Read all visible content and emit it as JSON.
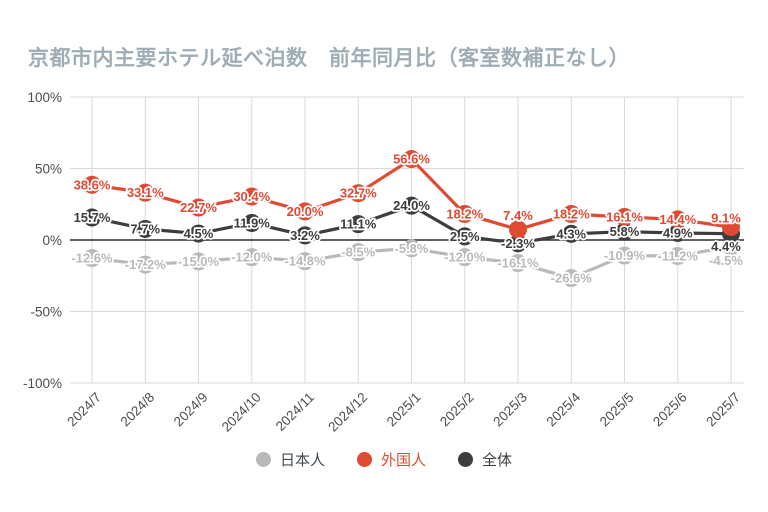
{
  "title": "京都市内主要ホテル延べ泊数　前年同月比（客室数補正なし）",
  "chart_data": {
    "type": "line",
    "categories": [
      "2024/7",
      "2024/8",
      "2024/9",
      "2024/10",
      "2024/11",
      "2024/12",
      "2025/1",
      "2025/2",
      "2025/3",
      "2025/4",
      "2025/5",
      "2025/6",
      "2025/7"
    ],
    "series": [
      {
        "name": "日本人",
        "color": "#b9b9b9",
        "values": [
          -12.6,
          -17.2,
          -15.0,
          -12.0,
          -14.8,
          -8.5,
          -5.8,
          -12.0,
          -16.1,
          -26.6,
          -10.9,
          -11.2,
          -4.5
        ]
      },
      {
        "name": "外国人",
        "color": "#e04a33",
        "values": [
          38.6,
          33.1,
          22.7,
          30.4,
          20.0,
          32.7,
          56.6,
          18.2,
          7.4,
          18.2,
          16.1,
          14.4,
          9.1
        ]
      },
      {
        "name": "全体",
        "color": "#3d3d3d",
        "values": [
          15.7,
          7.7,
          4.5,
          11.9,
          3.2,
          11.1,
          24.0,
          2.5,
          -2.3,
          4.3,
          5.8,
          4.9,
          4.4
        ]
      }
    ],
    "ylim": [
      -100,
      100
    ],
    "yticks": [
      {
        "label": "100%",
        "value": 100
      },
      {
        "label": "50%",
        "value": 50
      },
      {
        "label": "0%",
        "value": 0
      },
      {
        "label": "-50%",
        "value": -50
      },
      {
        "label": "-100%",
        "value": -100
      }
    ],
    "value_suffix": "%",
    "grid": true,
    "legend_position": "bottom"
  },
  "legend": {
    "items": [
      {
        "label": "日本人",
        "dot_color": "#b9b9b9",
        "text_color": "#3e4c56"
      },
      {
        "label": "外国人",
        "dot_color": "#e04a33",
        "text_color": "#e04a33"
      },
      {
        "label": "全体",
        "dot_color": "#3d3d3d",
        "text_color": "#3d3d3d"
      }
    ]
  },
  "colors": {
    "title": "#9fadb5",
    "axis_text": "#4d4d4d",
    "gridline": "#d9d9d9",
    "zero_line": "#2b2b2b",
    "background": "#ffffff"
  }
}
